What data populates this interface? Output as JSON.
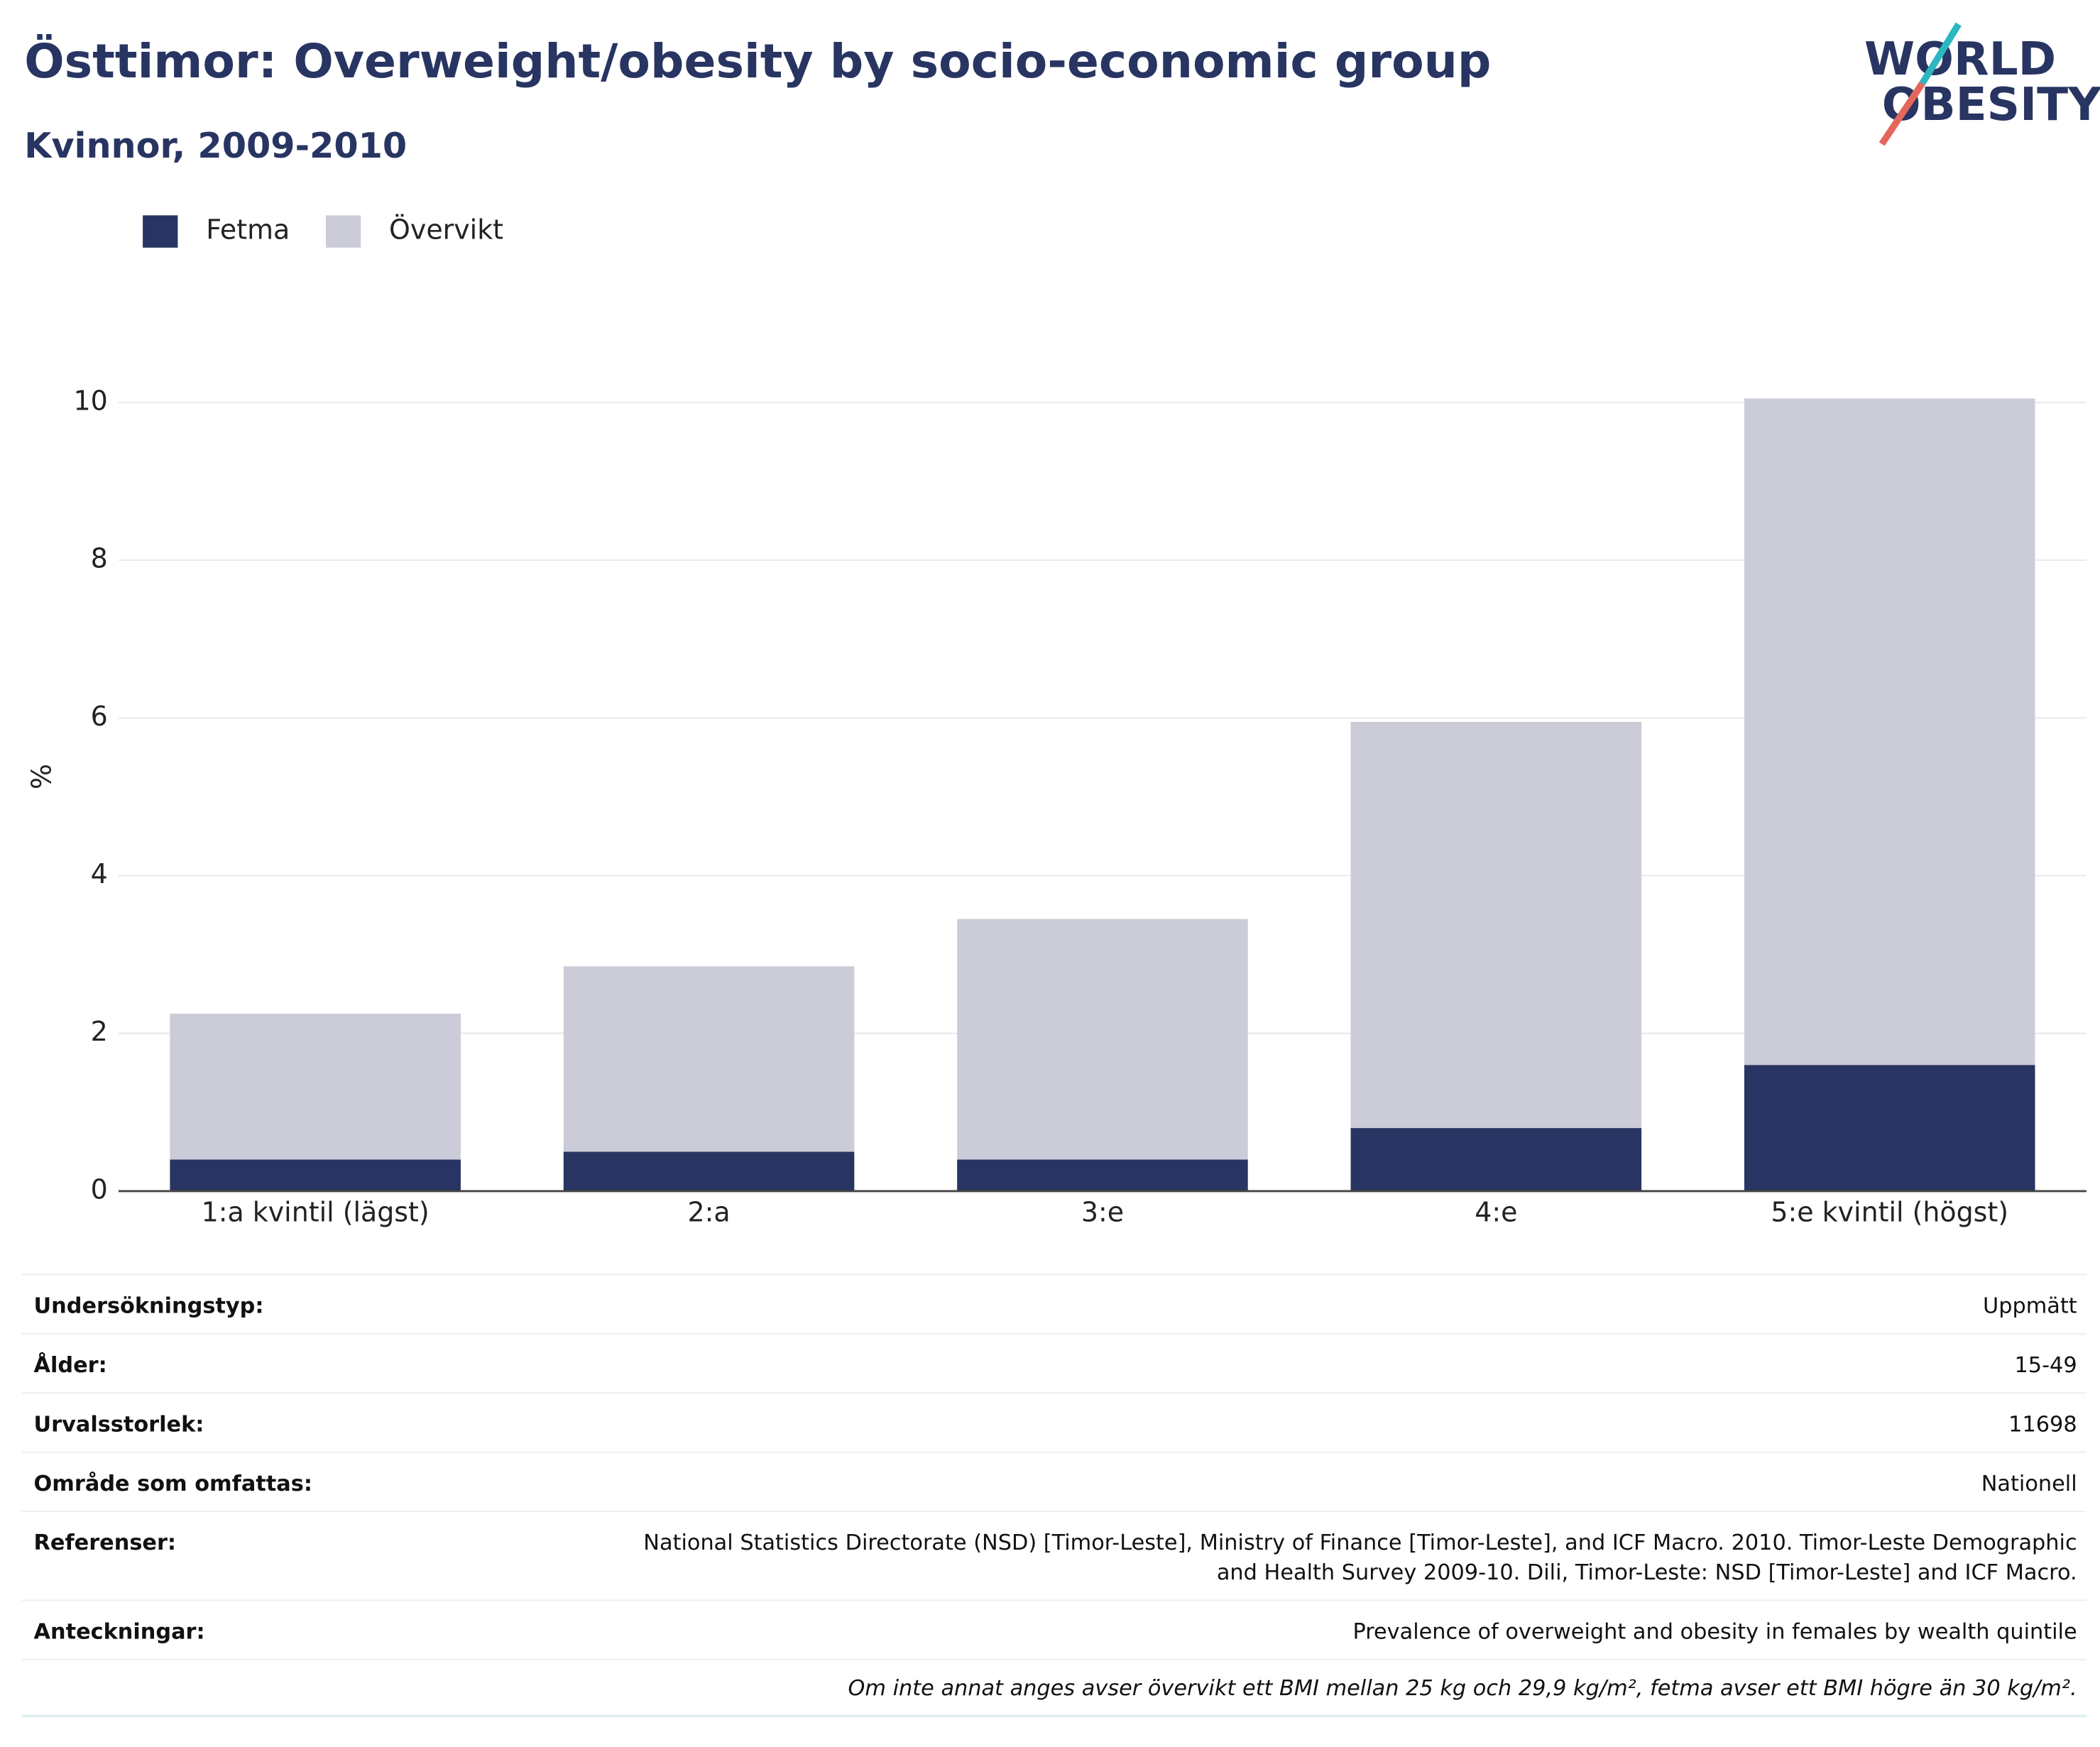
{
  "chart_data": {
    "type": "stacked-bar",
    "title": "Östtimor: Overweight/obesity by socio-economic group",
    "subtitle": "Kvinnor, 2009-2010",
    "y_label": "%",
    "categories": [
      "1:a kvintil (lägst)",
      "2:a",
      "3:e",
      "4:e",
      "5:e kvintil (högst)"
    ],
    "series": [
      {
        "name": "Fetma",
        "color": "#283562",
        "values": [
          0.4,
          0.5,
          0.4,
          0.8,
          1.6
        ]
      },
      {
        "name": "Övervikt",
        "color": "#cbccd8",
        "values": [
          1.85,
          2.35,
          3.05,
          5.15,
          8.45
        ]
      }
    ],
    "ylim": [
      0,
      10
    ],
    "yticks": [
      0,
      2,
      4,
      6,
      8,
      10
    ],
    "grid": true,
    "legend": "top-left"
  },
  "logo": {
    "lines": [
      "WORLD",
      "OBESITY"
    ]
  },
  "table": {
    "rows": [
      {
        "label": "Undersökningstyp:",
        "value": [
          "Uppmätt"
        ]
      },
      {
        "label": "Ålder:",
        "value": [
          "15-49"
        ]
      },
      {
        "label": "Urvalsstorlek:",
        "value": [
          "11698"
        ]
      },
      {
        "label": "Område som omfattas:",
        "value": [
          "Nationell"
        ]
      },
      {
        "label": "Referenser:",
        "value": [
          "National Statistics Directorate (NSD) [Timor-Leste], Ministry of Finance [Timor-Leste], and ICF Macro. 2010. Timor-Leste Demographic",
          "and Health Survey 2009-10. Dili, Timor-Leste: NSD [Timor-Leste] and ICF Macro."
        ]
      },
      {
        "label": "Anteckningar:",
        "value": [
          "Prevalence of overweight and obesity in females by wealth quintile"
        ]
      }
    ],
    "footnote": "Om inte annat anges avser övervikt ett BMI mellan 25 kg och 29,9 kg/m², fetma avser ett BMI högre än 30 kg/m²."
  }
}
